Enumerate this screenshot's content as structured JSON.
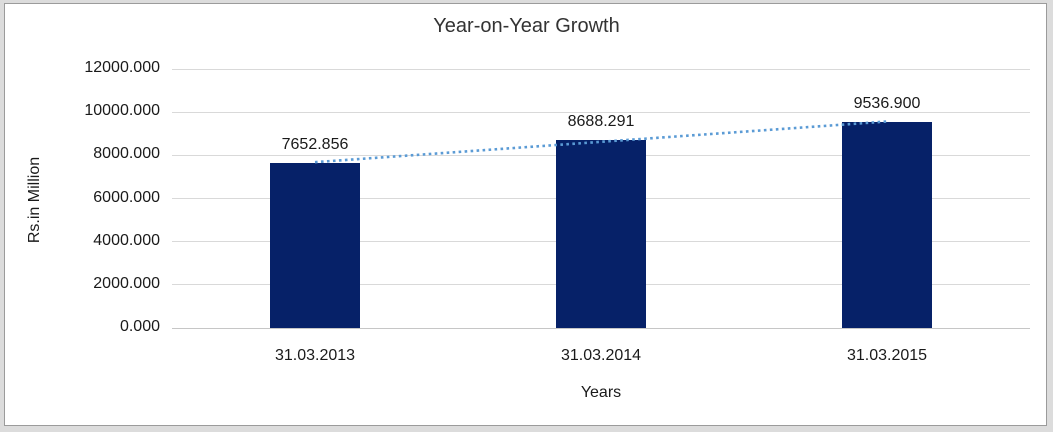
{
  "chart_data": {
    "type": "bar",
    "title": "Year-on-Year Growth",
    "xlabel": "Years",
    "ylabel": "Rs.in Million",
    "categories": [
      "31.03.2013",
      "31.03.2014",
      "31.03.2015"
    ],
    "values": [
      7652.856,
      8688.291,
      9536.9
    ],
    "data_labels": [
      "7652.856",
      "8688.291",
      "9536.900"
    ],
    "ylim": [
      0,
      12000
    ],
    "ytick_step": 2000,
    "ytick_labels": [
      "0.000",
      "2000.000",
      "4000.000",
      "6000.000",
      "8000.000",
      "10000.000",
      "12000.000"
    ],
    "grid": true,
    "legend": "none",
    "bar_color": "#062168",
    "gridline_color": "#d9d9d9",
    "trendline": {
      "type": "linear",
      "style": "dotted",
      "color": "#5b9bd5"
    }
  }
}
